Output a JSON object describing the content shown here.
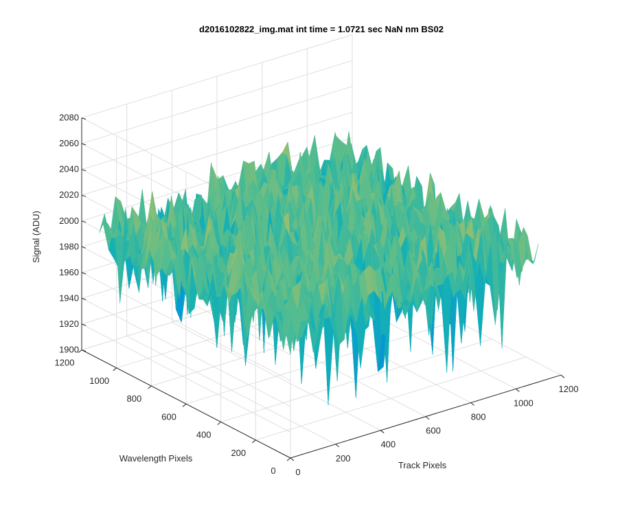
{
  "chart_data": {
    "type": "surface3d",
    "title": "d2016102822_img.mat int time = 1.0721 sec  NaN nm BS02",
    "xlabel": "Track Pixels",
    "ylabel": "Wavelength Pixels",
    "zlabel": "Signal (ADU)",
    "xlim": [
      0,
      1200
    ],
    "ylim": [
      0,
      1200
    ],
    "zlim": [
      1900,
      2080
    ],
    "x_ticks": [
      "0",
      "200",
      "400",
      "600",
      "800",
      "1000",
      "1200"
    ],
    "y_ticks": [
      "0",
      "200",
      "400",
      "600",
      "800",
      "1000",
      "1200"
    ],
    "z_ticks": [
      "1900",
      "1920",
      "1940",
      "1960",
      "1980",
      "2000",
      "2020",
      "2040",
      "2060",
      "2080"
    ],
    "grid": true,
    "colormap": "parula",
    "surface": {
      "x_range": [
        0,
        1100
      ],
      "y_range": [
        0,
        1100
      ],
      "mean": 2000,
      "range": [
        1900,
        2070
      ]
    }
  },
  "colors": {
    "axis": "#262626",
    "grid": "#dedede",
    "background": "#ffffff"
  }
}
